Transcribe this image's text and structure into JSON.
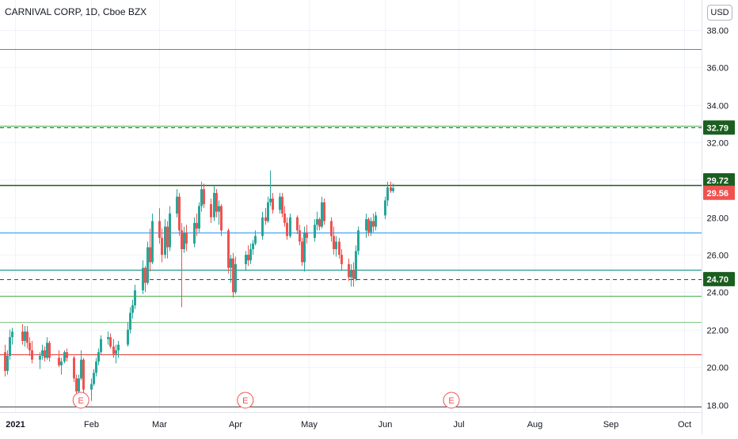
{
  "header": {
    "symbol_label": "CARNIVAL CORP, 1D, Cboe BZX",
    "currency_label": "USD"
  },
  "chart_data": {
    "type": "candlestick",
    "title": "CARNIVAL CORP, 1D, Cboe BZX",
    "ylim": [
      17.6,
      39.6
    ],
    "xlim": [
      "2020-12-26",
      "2021-10-08"
    ],
    "y_ticks": [
      "18.00",
      "20.00",
      "22.00",
      "24.00",
      "26.00",
      "28.00",
      "30.00",
      "32.00",
      "34.00",
      "36.00",
      "38.00"
    ],
    "x_ticks": [
      {
        "date": "2021-01-01",
        "label": "2021"
      },
      {
        "date": "2021-02-01",
        "label": "Feb"
      },
      {
        "date": "2021-03-01",
        "label": "Mar"
      },
      {
        "date": "2021-04-01",
        "label": "Apr"
      },
      {
        "date": "2021-05-01",
        "label": "May"
      },
      {
        "date": "2021-06-01",
        "label": "Jun"
      },
      {
        "date": "2021-07-01",
        "label": "Jul"
      },
      {
        "date": "2021-08-01",
        "label": "Aug"
      },
      {
        "date": "2021-09-01",
        "label": "Sep"
      },
      {
        "date": "2021-10-01",
        "label": "Oct"
      }
    ],
    "horizontal_levels": [
      {
        "price": 37.0,
        "style": "solid",
        "color": "#2196f3"
      },
      {
        "price": 32.9,
        "style": "solid",
        "color": "#4caf50"
      },
      {
        "price": 32.79,
        "style": "dashed",
        "color": "#1b5e20",
        "label": "32.79"
      },
      {
        "price": 29.72,
        "style": "solid",
        "color": "#1b5e20",
        "label": "29.72"
      },
      {
        "price": 27.2,
        "style": "solid",
        "color": "#2196f3"
      },
      {
        "price": 25.2,
        "style": "solid",
        "color": "#00897b"
      },
      {
        "price": 24.7,
        "style": "dashed",
        "color": "#1b5e20",
        "label": "24.70"
      },
      {
        "price": 23.8,
        "style": "solid",
        "color": "#4caf50"
      },
      {
        "price": 22.4,
        "style": "solid",
        "color": "#81c784"
      },
      {
        "price": 20.7,
        "style": "solid",
        "color": "#e53935"
      },
      {
        "price": 17.9,
        "style": "solid",
        "color": "#424242"
      }
    ],
    "last_price": {
      "value": "29.56",
      "color": "#ef5350"
    },
    "earnings_markers": [
      {
        "date": "2021-01-28",
        "label": "E"
      },
      {
        "date": "2021-04-05",
        "label": "E"
      },
      {
        "date": "2021-06-28",
        "label": "E"
      }
    ],
    "colors": {
      "up": "#26a69a",
      "down": "#ef5350",
      "grid": "#f0f3fa"
    },
    "candles": [
      [
        "2020-12-28",
        20.8,
        21.2,
        19.5,
        19.8
      ],
      [
        "2020-12-29",
        19.8,
        20.9,
        19.6,
        20.6
      ],
      [
        "2020-12-30",
        20.6,
        22.0,
        20.4,
        21.6
      ],
      [
        "2020-12-31",
        21.6,
        22.1,
        21.2,
        21.9
      ],
      [
        "2021-01-04",
        21.9,
        22.3,
        21.2,
        21.4
      ],
      [
        "2021-01-05",
        21.4,
        22.2,
        21.1,
        21.9
      ],
      [
        "2021-01-06",
        21.9,
        22.2,
        21.0,
        21.3
      ],
      [
        "2021-01-07",
        21.3,
        21.6,
        20.6,
        20.9
      ],
      [
        "2021-01-08",
        20.9,
        21.4,
        20.2,
        20.4
      ],
      [
        "2021-01-11",
        20.4,
        20.8,
        19.9,
        20.6
      ],
      [
        "2021-01-12",
        20.6,
        21.2,
        20.4,
        20.9
      ],
      [
        "2021-01-13",
        20.9,
        21.1,
        20.3,
        20.5
      ],
      [
        "2021-01-14",
        20.5,
        21.6,
        20.4,
        21.3
      ],
      [
        "2021-01-15",
        21.3,
        21.4,
        20.3,
        20.5
      ],
      [
        "2021-01-19",
        20.5,
        20.9,
        20.0,
        20.1
      ],
      [
        "2021-01-20",
        20.1,
        20.5,
        19.6,
        20.3
      ],
      [
        "2021-01-21",
        20.3,
        20.9,
        20.2,
        20.8
      ],
      [
        "2021-01-22",
        20.8,
        21.0,
        20.3,
        20.5
      ],
      [
        "2021-01-25",
        20.5,
        20.6,
        19.2,
        19.4
      ],
      [
        "2021-01-26",
        19.4,
        19.6,
        18.5,
        18.7
      ],
      [
        "2021-01-27",
        18.7,
        19.6,
        18.3,
        19.4
      ],
      [
        "2021-01-28",
        19.4,
        20.9,
        19.3,
        20.4
      ],
      [
        "2021-01-29",
        20.4,
        20.5,
        18.6,
        18.8
      ],
      [
        "2021-02-01",
        18.8,
        19.4,
        18.2,
        19.1
      ],
      [
        "2021-02-02",
        19.1,
        19.9,
        19.0,
        19.7
      ],
      [
        "2021-02-03",
        19.7,
        20.5,
        19.5,
        20.3
      ],
      [
        "2021-02-04",
        20.3,
        21.0,
        20.1,
        20.8
      ],
      [
        "2021-02-05",
        20.8,
        21.7,
        20.7,
        21.5
      ],
      [
        "2021-02-08",
        21.5,
        21.9,
        21.2,
        21.6
      ],
      [
        "2021-02-09",
        21.6,
        21.8,
        21.0,
        21.1
      ],
      [
        "2021-02-10",
        21.1,
        21.5,
        20.5,
        20.7
      ],
      [
        "2021-02-11",
        20.7,
        21.2,
        20.2,
        20.9
      ],
      [
        "2021-02-12",
        20.9,
        21.4,
        20.5,
        21.2
      ],
      [
        "2021-02-16",
        21.2,
        22.4,
        21.1,
        22.0
      ],
      [
        "2021-02-17",
        22.0,
        23.2,
        21.8,
        22.9
      ],
      [
        "2021-02-18",
        22.9,
        23.6,
        22.6,
        23.3
      ],
      [
        "2021-02-19",
        23.3,
        24.4,
        23.1,
        24.1
      ],
      [
        "2021-02-22",
        24.1,
        25.7,
        23.9,
        25.3
      ],
      [
        "2021-02-23",
        25.3,
        25.4,
        24.0,
        24.5
      ],
      [
        "2021-02-24",
        24.5,
        26.7,
        24.4,
        26.4
      ],
      [
        "2021-02-25",
        26.4,
        27.4,
        25.1,
        25.6
      ],
      [
        "2021-02-26",
        25.6,
        28.2,
        25.5,
        27.8
      ],
      [
        "2021-03-01",
        27.8,
        28.5,
        26.6,
        26.9
      ],
      [
        "2021-03-02",
        26.9,
        27.4,
        25.6,
        26.0
      ],
      [
        "2021-03-03",
        26.0,
        27.9,
        25.8,
        27.5
      ],
      [
        "2021-03-04",
        27.5,
        27.8,
        25.8,
        26.4
      ],
      [
        "2021-03-05",
        26.4,
        28.6,
        26.2,
        28.2
      ],
      [
        "2021-03-08",
        28.2,
        29.5,
        28.0,
        29.1
      ],
      [
        "2021-03-09",
        29.1,
        29.3,
        27.0,
        27.3
      ],
      [
        "2021-03-10",
        27.3,
        27.7,
        23.2,
        26.3
      ],
      [
        "2021-03-11",
        26.3,
        27.5,
        26.1,
        27.2
      ],
      [
        "2021-03-12",
        27.2,
        27.6,
        26.2,
        26.6
      ],
      [
        "2021-03-15",
        26.6,
        28.0,
        26.4,
        27.7
      ],
      [
        "2021-03-16",
        27.7,
        28.2,
        27.0,
        27.4
      ],
      [
        "2021-03-17",
        27.4,
        28.8,
        27.2,
        28.6
      ],
      [
        "2021-03-18",
        28.6,
        29.9,
        28.3,
        29.5
      ],
      [
        "2021-03-19",
        29.5,
        29.8,
        28.5,
        28.7
      ],
      [
        "2021-03-22",
        28.7,
        29.0,
        27.7,
        28.0
      ],
      [
        "2021-03-23",
        28.0,
        29.7,
        27.8,
        29.3
      ],
      [
        "2021-03-24",
        29.3,
        29.5,
        28.0,
        28.3
      ],
      [
        "2021-03-25",
        28.3,
        28.9,
        27.6,
        28.6
      ],
      [
        "2021-03-26",
        28.6,
        28.7,
        27.0,
        27.3
      ],
      [
        "2021-03-29",
        27.3,
        27.4,
        25.0,
        25.3
      ],
      [
        "2021-03-30",
        25.3,
        26.0,
        24.5,
        25.8
      ],
      [
        "2021-03-31",
        25.8,
        26.1,
        23.7,
        24.0
      ],
      [
        "2021-04-01",
        24.0,
        25.9,
        23.9,
        25.5
      ],
      [
        "2021-04-05",
        25.5,
        26.2,
        25.2,
        26.0
      ],
      [
        "2021-04-06",
        26.0,
        26.5,
        25.4,
        25.7
      ],
      [
        "2021-04-07",
        25.7,
        26.6,
        25.5,
        26.3
      ],
      [
        "2021-04-08",
        26.3,
        26.8,
        26.0,
        26.6
      ],
      [
        "2021-04-09",
        26.6,
        27.3,
        26.5,
        27.0
      ],
      [
        "2021-04-12",
        27.0,
        28.3,
        26.8,
        28.0
      ],
      [
        "2021-04-13",
        28.0,
        28.5,
        27.6,
        27.8
      ],
      [
        "2021-04-14",
        27.8,
        29.1,
        27.7,
        28.8
      ],
      [
        "2021-04-15",
        28.8,
        30.5,
        28.6,
        29.0
      ],
      [
        "2021-04-16",
        29.0,
        29.3,
        28.2,
        28.4
      ],
      [
        "2021-04-19",
        28.4,
        29.3,
        28.2,
        29.1
      ],
      [
        "2021-04-20",
        29.1,
        29.3,
        28.0,
        28.2
      ],
      [
        "2021-04-21",
        28.2,
        28.6,
        27.5,
        27.7
      ],
      [
        "2021-04-22",
        27.7,
        28.0,
        26.8,
        27.0
      ],
      [
        "2021-04-23",
        27.0,
        28.2,
        26.9,
        28.0
      ],
      [
        "2021-04-26",
        28.0,
        28.1,
        27.1,
        27.3
      ],
      [
        "2021-04-27",
        27.3,
        27.6,
        26.5,
        26.7
      ],
      [
        "2021-04-28",
        26.7,
        26.9,
        25.4,
        25.6
      ],
      [
        "2021-04-29",
        25.6,
        27.5,
        25.1,
        27.2
      ],
      [
        "2021-04-30",
        27.2,
        27.6,
        26.6,
        26.9
      ],
      [
        "2021-05-03",
        26.9,
        27.9,
        26.7,
        27.6
      ],
      [
        "2021-05-04",
        27.6,
        28.3,
        27.3,
        27.9
      ],
      [
        "2021-05-05",
        27.9,
        28.0,
        27.3,
        27.5
      ],
      [
        "2021-05-06",
        27.5,
        29.1,
        27.4,
        28.8
      ],
      [
        "2021-05-07",
        28.8,
        29.0,
        27.6,
        27.8
      ],
      [
        "2021-05-10",
        27.8,
        28.0,
        26.7,
        27.0
      ],
      [
        "2021-05-11",
        27.0,
        27.5,
        26.0,
        26.3
      ],
      [
        "2021-05-12",
        26.3,
        27.0,
        25.9,
        26.7
      ],
      [
        "2021-05-13",
        26.7,
        26.9,
        25.8,
        26.0
      ],
      [
        "2021-05-14",
        26.0,
        26.3,
        25.2,
        25.5
      ],
      [
        "2021-05-17",
        25.5,
        25.8,
        24.6,
        24.8
      ],
      [
        "2021-05-18",
        24.8,
        25.5,
        24.3,
        25.2
      ],
      [
        "2021-05-19",
        25.2,
        25.6,
        24.3,
        24.7
      ],
      [
        "2021-05-20",
        24.7,
        26.5,
        24.6,
        26.2
      ],
      [
        "2021-05-21",
        26.2,
        27.5,
        26.0,
        27.3
      ],
      [
        "2021-05-24",
        27.3,
        28.2,
        26.9,
        27.9
      ],
      [
        "2021-05-25",
        27.9,
        28.0,
        27.0,
        27.2
      ],
      [
        "2021-05-26",
        27.2,
        28.0,
        27.0,
        27.8
      ],
      [
        "2021-05-27",
        27.8,
        28.2,
        27.2,
        27.5
      ],
      [
        "2021-05-28",
        27.5,
        28.3,
        27.3,
        28.1
      ],
      [
        "2021-06-01",
        28.1,
        29.1,
        27.9,
        28.9
      ],
      [
        "2021-06-02",
        28.9,
        29.9,
        28.6,
        29.6
      ],
      [
        "2021-06-03",
        29.6,
        29.9,
        29.3,
        29.4
      ],
      [
        "2021-06-04",
        29.4,
        29.8,
        29.3,
        29.56
      ]
    ]
  }
}
